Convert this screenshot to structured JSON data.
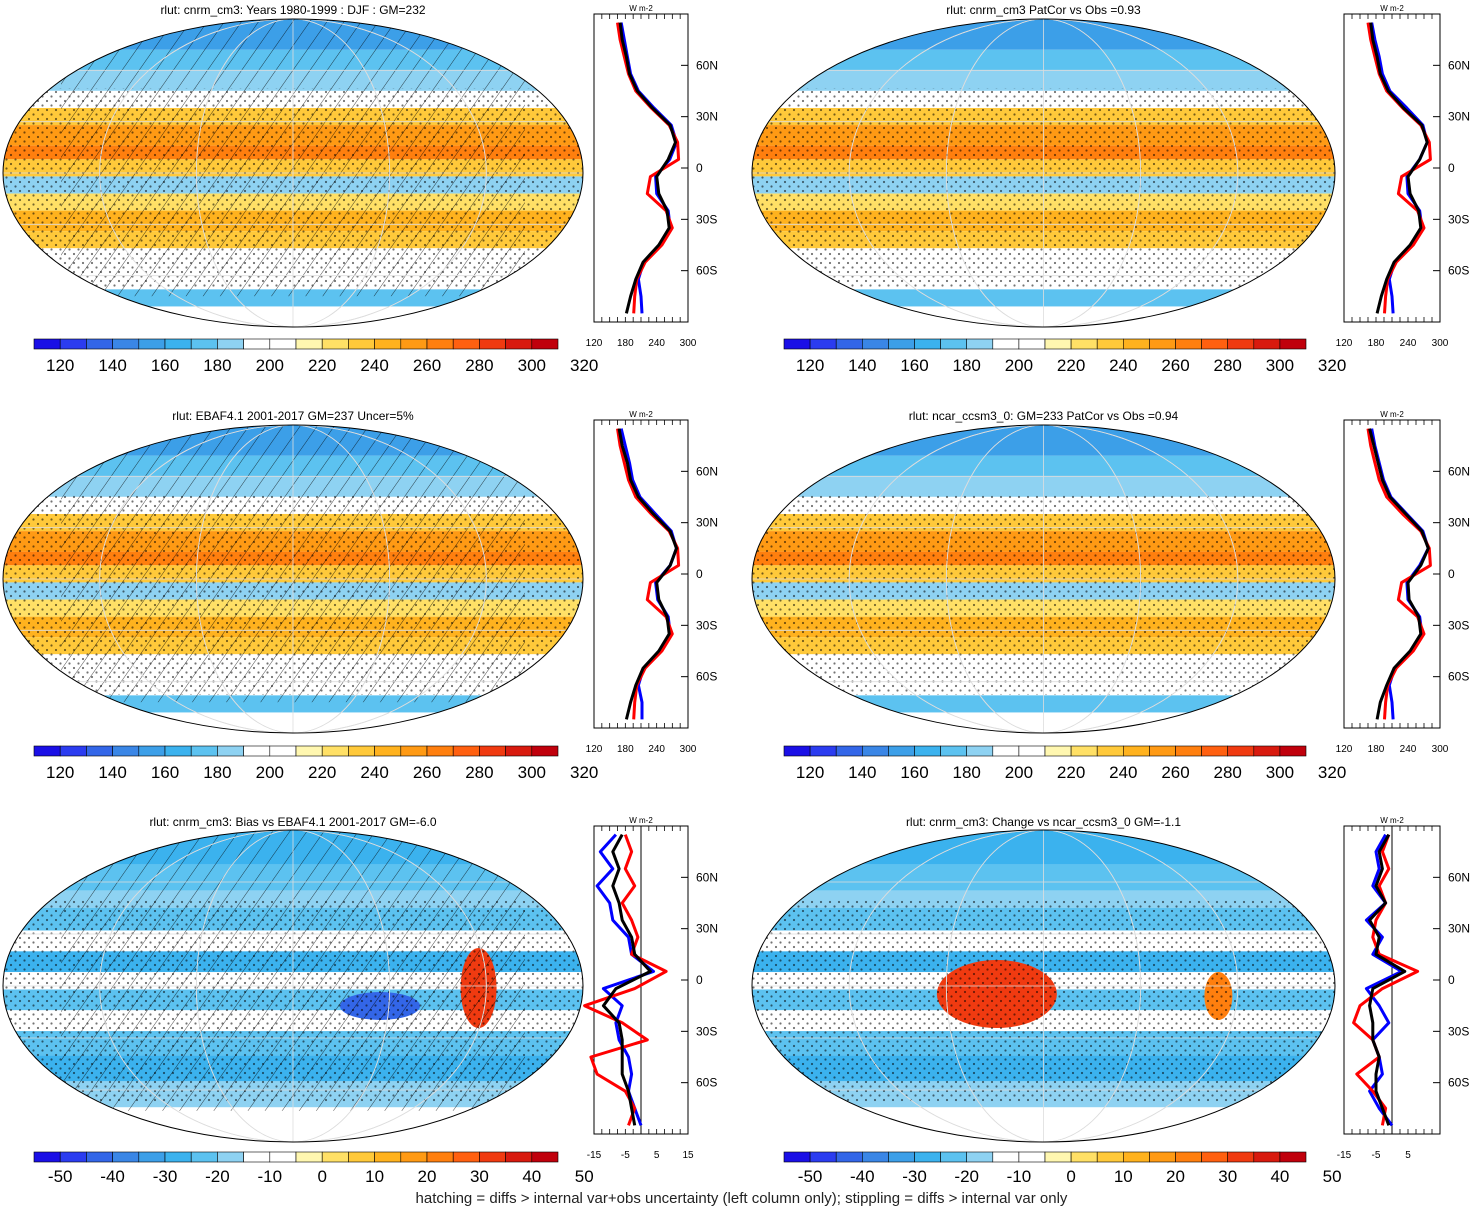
{
  "footnote": "hatching = diffs > internal var+obs uncertainty (left column only); stippling = diffs > internal var only",
  "colors": {
    "abs_scale": [
      "#1a0fe6",
      "#2b3cf0",
      "#3366e8",
      "#3a86e6",
      "#3c9fe8",
      "#3bb2ee",
      "#5cc2f0",
      "#8ed2f2",
      "#ffffff",
      "#ffffff",
      "#fff7b0",
      "#ffe066",
      "#ffc93a",
      "#ffb21e",
      "#ff9a14",
      "#ff7f0e",
      "#ff6010",
      "#f03a10",
      "#d81a0e",
      "#c0000c"
    ],
    "diff_scale": [
      "#1a0fe6",
      "#2b3cf0",
      "#3366e8",
      "#3a86e6",
      "#3c9fe8",
      "#3bb2ee",
      "#5cc2f0",
      "#8ed2f2",
      "#ffffff",
      "#ffffff",
      "#fff7b0",
      "#ffe066",
      "#ffc93a",
      "#ffb21e",
      "#ff9a14",
      "#ff7f0e",
      "#ff6010",
      "#f03a10",
      "#d81a0e",
      "#c0000c"
    ],
    "model_line": "#000000",
    "obs_line": "#ff0000",
    "other_line": "#0000ff"
  },
  "chart_data": [
    {
      "type": "heatmap",
      "title": "rlut: cnrm_cm3: Years 1980-1999 : DJF : GM=232",
      "colorbar_ticks": [
        "120",
        "140",
        "160",
        "180",
        "200",
        "220",
        "240",
        "260",
        "280",
        "300",
        "320"
      ],
      "hatched": true,
      "profile": {
        "unit": "W m-2",
        "xlim": [
          120,
          300
        ],
        "x_ticks": [
          "120",
          "180",
          "240",
          "300"
        ],
        "ylim": [
          -90,
          90
        ],
        "y_ticks": [
          "60N",
          "30N",
          "0",
          "30S",
          "60S"
        ],
        "y_tick_values": [
          60,
          30,
          0,
          -30,
          -60
        ],
        "lat": [
          85,
          75,
          65,
          55,
          45,
          35,
          25,
          15,
          5,
          -5,
          -15,
          -25,
          -35,
          -45,
          -55,
          -65,
          -75,
          -85
        ],
        "series": [
          {
            "color": "other_line",
            "values": [
              172,
              178,
              184,
              190,
              205,
              235,
              268,
              278,
              265,
              238,
              240,
              262,
              266,
              245,
              215,
              205,
              210,
              212
            ]
          },
          {
            "color": "obs_line",
            "values": [
              165,
              170,
              178,
              186,
              200,
              230,
              264,
              280,
              282,
              228,
              222,
              258,
              270,
              250,
              218,
              202,
              198,
              196
            ]
          },
          {
            "color": "model_line",
            "values": [
              170,
              174,
              182,
              188,
              203,
              232,
              266,
              276,
              262,
              240,
              244,
              260,
              264,
              244,
              214,
              200,
              190,
              182
            ]
          }
        ]
      }
    },
    {
      "type": "heatmap",
      "title": "rlut: cnrm_cm3 PatCor vs Obs =0.93",
      "colorbar_ticks": [
        "120",
        "140",
        "160",
        "180",
        "200",
        "220",
        "240",
        "260",
        "280",
        "300",
        "320"
      ],
      "hatched": false,
      "profile": {
        "unit": "W m-2",
        "xlim": [
          120,
          300
        ],
        "x_ticks": [
          "120",
          "180",
          "240",
          "300"
        ],
        "ylim": [
          -90,
          90
        ],
        "y_ticks": [
          "60N",
          "30N",
          "0",
          "30S",
          "60S"
        ],
        "y_tick_values": [
          60,
          30,
          0,
          -30,
          -60
        ],
        "lat": [
          85,
          75,
          65,
          55,
          45,
          35,
          25,
          15,
          5,
          -5,
          -15,
          -25,
          -35,
          -45,
          -55,
          -65,
          -75,
          -85
        ],
        "series": [
          {
            "color": "other_line",
            "values": [
              172,
              178,
              186,
              192,
              206,
              238,
              268,
              276,
              262,
              238,
              240,
              262,
              266,
              245,
              215,
              205,
              210,
              212
            ]
          },
          {
            "color": "obs_line",
            "values": [
              165,
              170,
              178,
              186,
              200,
              230,
              264,
              280,
              282,
              228,
              222,
              258,
              270,
              250,
              218,
              202,
              198,
              196
            ]
          },
          {
            "color": "model_line",
            "values": [
              170,
              174,
              182,
              188,
              203,
              232,
              266,
              276,
              262,
              240,
              244,
              260,
              264,
              244,
              214,
              200,
              190,
              182
            ]
          }
        ]
      }
    },
    {
      "type": "heatmap",
      "title": "rlut: EBAF4.1 2001-2017 GM=237 Uncer=5%",
      "colorbar_ticks": [
        "120",
        "140",
        "160",
        "180",
        "200",
        "220",
        "240",
        "260",
        "280",
        "300",
        "320"
      ],
      "hatched": true,
      "profile": {
        "unit": "W m-2",
        "xlim": [
          120,
          300
        ],
        "x_ticks": [
          "120",
          "180",
          "240",
          "300"
        ],
        "ylim": [
          -90,
          90
        ],
        "y_ticks": [
          "60N",
          "30N",
          "0",
          "30S",
          "60S"
        ],
        "y_tick_values": [
          60,
          30,
          0,
          -30,
          -60
        ],
        "lat": [
          85,
          75,
          65,
          55,
          45,
          35,
          25,
          15,
          5,
          -5,
          -15,
          -25,
          -35,
          -45,
          -55,
          -65,
          -75,
          -85
        ],
        "series": [
          {
            "color": "other_line",
            "values": [
              172,
              180,
              188,
              194,
              208,
              238,
              268,
              278,
              266,
              238,
              242,
              262,
              266,
              245,
              215,
              205,
              212,
              212
            ]
          },
          {
            "color": "obs_line",
            "values": [
              165,
              170,
              178,
              186,
              200,
              230,
              264,
              280,
              282,
              228,
              222,
              258,
              270,
              250,
              218,
              202,
              198,
              196
            ]
          },
          {
            "color": "model_line",
            "values": [
              168,
              174,
              184,
              190,
              205,
              234,
              266,
              278,
              266,
              240,
              244,
              260,
              264,
              244,
              214,
              200,
              190,
              182
            ]
          }
        ]
      }
    },
    {
      "type": "heatmap",
      "title": "rlut: ncar_ccsm3_0: GM=233 PatCor vs Obs =0.94",
      "colorbar_ticks": [
        "120",
        "140",
        "160",
        "180",
        "200",
        "220",
        "240",
        "260",
        "280",
        "300",
        "320"
      ],
      "hatched": false,
      "profile": {
        "unit": "W m-2",
        "xlim": [
          120,
          300
        ],
        "x_ticks": [
          "120",
          "180",
          "240",
          "300"
        ],
        "ylim": [
          -90,
          90
        ],
        "y_ticks": [
          "60N",
          "30N",
          "0",
          "30S",
          "60S"
        ],
        "y_tick_values": [
          60,
          30,
          0,
          -30,
          -60
        ],
        "lat": [
          85,
          75,
          65,
          55,
          45,
          35,
          25,
          15,
          5,
          -5,
          -15,
          -25,
          -35,
          -45,
          -55,
          -65,
          -75,
          -85
        ],
        "series": [
          {
            "color": "other_line",
            "values": [
              172,
              178,
              186,
              194,
              208,
              238,
              268,
              278,
              262,
              238,
              240,
              262,
              266,
              245,
              215,
              205,
              210,
              212
            ]
          },
          {
            "color": "obs_line",
            "values": [
              165,
              170,
              178,
              186,
              200,
              230,
              264,
              280,
              282,
              228,
              222,
              258,
              270,
              250,
              218,
              202,
              198,
              196
            ]
          },
          {
            "color": "model_line",
            "values": [
              168,
              176,
              184,
              192,
              206,
              236,
              266,
              278,
              264,
              240,
              242,
              260,
              264,
              244,
              214,
              200,
              188,
              182
            ]
          }
        ]
      }
    },
    {
      "type": "heatmap",
      "title": "rlut: cnrm_cm3: Bias vs EBAF4.1 2001-2017 GM=-6.0",
      "colorbar_ticks": [
        "-50",
        "-40",
        "-30",
        "-20",
        "-10",
        "0",
        "10",
        "20",
        "30",
        "40",
        "50"
      ],
      "hatched": true,
      "profile": {
        "unit": "W m-2",
        "xlim": [
          -15,
          15
        ],
        "x_ticks": [
          "-15",
          "-5",
          "5",
          "15"
        ],
        "zero_line": 0,
        "ylim": [
          -90,
          90
        ],
        "y_ticks": [
          "60N",
          "30N",
          "0",
          "30S",
          "60S"
        ],
        "y_tick_values": [
          60,
          30,
          0,
          -30,
          -60
        ],
        "lat": [
          85,
          75,
          65,
          55,
          45,
          35,
          25,
          15,
          5,
          -5,
          -15,
          -25,
          -35,
          -45,
          -55,
          -65,
          -75,
          -85
        ],
        "series": [
          {
            "color": "other_line",
            "values": [
              -8,
              -13,
              -9,
              -14,
              -10,
              -9,
              -4,
              -3,
              4,
              -12,
              -6,
              -8,
              -7,
              -4,
              -3,
              -4,
              -2,
              0
            ]
          },
          {
            "color": "obs_line",
            "values": [
              -5,
              -3,
              -5,
              -2,
              -6,
              -3,
              -1,
              -3,
              8,
              -2,
              -18,
              -6,
              2,
              -16,
              -14,
              -5,
              -2,
              -4
            ]
          },
          {
            "color": "model_line",
            "values": [
              -6,
              -9,
              -7,
              -9,
              -7,
              -6,
              -3,
              -2,
              3,
              -8,
              -12,
              -7,
              -6,
              -6,
              -6,
              -4,
              -3,
              -2
            ]
          }
        ]
      }
    },
    {
      "type": "heatmap",
      "title": "rlut: cnrm_cm3: Change vs ncar_ccsm3_0 GM=-1.1",
      "colorbar_ticks": [
        "-50",
        "-40",
        "-30",
        "-20",
        "-10",
        "0",
        "10",
        "20",
        "30",
        "40",
        "50"
      ],
      "hatched": false,
      "profile": {
        "unit": "W m-2",
        "xlim": [
          -15,
          15
        ],
        "x_ticks": [
          "-15",
          "-5",
          "5"
        ],
        "zero_line": 0,
        "ylim": [
          -90,
          90
        ],
        "y_ticks": [
          "60N",
          "30N",
          "0",
          "30S",
          "60S"
        ],
        "y_tick_values": [
          60,
          30,
          0,
          -30,
          -60
        ],
        "lat": [
          85,
          75,
          65,
          55,
          45,
          35,
          25,
          15,
          5,
          -5,
          -15,
          -25,
          -35,
          -45,
          -55,
          -65,
          -75,
          -85
        ],
        "series": [
          {
            "color": "other_line",
            "values": [
              -2,
              -5,
              -4,
              -6,
              -2,
              -8,
              -3,
              -6,
              3,
              -8,
              -4,
              -1,
              -6,
              -4,
              -3,
              -7,
              -4,
              0
            ]
          },
          {
            "color": "obs_line",
            "values": [
              -1,
              -3,
              -1,
              -4,
              -2,
              -5,
              -6,
              -4,
              8,
              -3,
              -10,
              -12,
              -6,
              -4,
              -11,
              -6,
              -2,
              -3
            ]
          },
          {
            "color": "model_line",
            "values": [
              -1,
              -4,
              -3,
              -5,
              -2,
              -7,
              -4,
              -5,
              4,
              -6,
              -7,
              -6,
              -6,
              -4,
              -5,
              -5,
              -3,
              -1
            ]
          }
        ]
      }
    }
  ]
}
